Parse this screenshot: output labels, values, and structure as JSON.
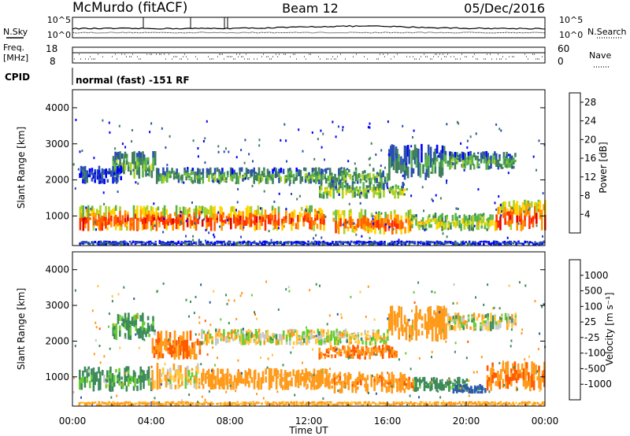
{
  "header": {
    "station": "McMurdo (fitACF)",
    "beam": "Beam 12",
    "date": "05/Dec/2016"
  },
  "noise_panel": {
    "left_label": "N.Sky",
    "right_label": "N.Search",
    "tick_top": "10^5",
    "tick_bottom": "10^0"
  },
  "freq_panel": {
    "left_label_1": "Freq.",
    "left_label_2": "[MHz]",
    "tick_top": "18",
    "tick_bottom": "8",
    "right_tick_top": "60",
    "right_tick_bottom": "0",
    "right_label": "Nave"
  },
  "cpid": {
    "label": "CPID",
    "value": "normal (fast) -151 RF"
  },
  "colors": {
    "power_scale": [
      "#0000ff",
      "#2a4fb0",
      "#3f7f5c",
      "#59b34c",
      "#a8d22a",
      "#ffd400",
      "#ff9900",
      "#ff6200",
      "#ff2c00",
      "#e00000"
    ],
    "velocity_scale": [
      "#e00000",
      "#ff5a00",
      "#ff9a1a",
      "#ffc840",
      "#c8c8c8",
      "#c8c8c8",
      "#66cc33",
      "#3d8a5a",
      "#2a5aa8",
      "#1a2ab8"
    ]
  },
  "chart_data": [
    {
      "type": "heatmap",
      "title": "",
      "xlabel": "",
      "ylabel": "Slant Range [km]",
      "x_ticks": [],
      "y_ticks": [
        "1000",
        "2000",
        "3000",
        "4000"
      ],
      "ylim": [
        180,
        4500
      ],
      "xlim_hours": [
        0,
        24
      ],
      "colorbar": {
        "label": "Power [dB]",
        "ticks": [
          "4",
          "8",
          "12",
          "16",
          "20",
          "24",
          "28"
        ],
        "range": [
          0,
          30
        ]
      },
      "echo_bands": [
        {
          "t_start": 0.3,
          "t_end": 12.8,
          "range_low": 600,
          "range_high": 1300,
          "level": 0.75
        },
        {
          "t_start": 13.2,
          "t_end": 17.2,
          "range_low": 500,
          "range_high": 1200,
          "level": 0.7
        },
        {
          "t_start": 17.2,
          "t_end": 21.3,
          "range_low": 600,
          "range_high": 1100,
          "level": 0.45
        },
        {
          "t_start": 21.3,
          "t_end": 24.0,
          "range_low": 600,
          "range_high": 1450,
          "level": 0.75
        },
        {
          "t_start": 0.3,
          "t_end": 24.0,
          "range_low": 200,
          "range_high": 320,
          "level": 0.12
        },
        {
          "t_start": 2.0,
          "t_end": 4.2,
          "range_low": 2050,
          "range_high": 2800,
          "level": 0.35
        },
        {
          "t_start": 4.2,
          "t_end": 16.0,
          "range_low": 1900,
          "range_high": 2350,
          "level": 0.3
        },
        {
          "t_start": 12.5,
          "t_end": 17.0,
          "range_low": 1500,
          "range_high": 1950,
          "level": 0.4
        },
        {
          "t_start": 16.0,
          "t_end": 19.0,
          "range_low": 2000,
          "range_high": 3000,
          "level": 0.25
        },
        {
          "t_start": 19.0,
          "t_end": 22.5,
          "range_low": 2300,
          "range_high": 2800,
          "level": 0.3
        },
        {
          "t_start": 0.3,
          "t_end": 2.5,
          "range_low": 1900,
          "range_high": 2400,
          "level": 0.1
        }
      ]
    },
    {
      "type": "heatmap",
      "title": "",
      "xlabel": "Time UT",
      "ylabel": "Slant Range [km]",
      "x_ticks": [
        "00:00",
        "04:00",
        "08:00",
        "12:00",
        "16:00",
        "20:00",
        "00:00"
      ],
      "y_ticks": [
        "1000",
        "2000",
        "3000",
        "4000"
      ],
      "ylim": [
        180,
        4500
      ],
      "xlim_hours": [
        0,
        24
      ],
      "colorbar": {
        "label": "Velocity [m s⁻¹]",
        "ticks": [
          "1000",
          "500",
          "100",
          "25",
          "-25",
          "-100",
          "-500",
          "-1000"
        ],
        "range": [
          -1000,
          1000
        ]
      },
      "echo_bands": [
        {
          "t_start": 0.3,
          "t_end": 4.0,
          "range_low": 600,
          "range_high": 1300,
          "velocity": 150
        },
        {
          "t_start": 4.0,
          "t_end": 6.5,
          "range_low": 650,
          "range_high": 1400,
          "velocity": -50
        },
        {
          "t_start": 6.5,
          "t_end": 13.0,
          "range_low": 650,
          "range_high": 1250,
          "velocity": -300
        },
        {
          "t_start": 13.0,
          "t_end": 17.3,
          "range_low": 550,
          "range_high": 1150,
          "velocity": -400
        },
        {
          "t_start": 17.3,
          "t_end": 20.0,
          "range_low": 600,
          "range_high": 1000,
          "velocity": 200
        },
        {
          "t_start": 19.3,
          "t_end": 21.0,
          "range_low": 550,
          "range_high": 800,
          "velocity": 700
        },
        {
          "t_start": 21.0,
          "t_end": 24.0,
          "range_low": 600,
          "range_high": 1450,
          "velocity": -500
        },
        {
          "t_start": 2.0,
          "t_end": 4.2,
          "range_low": 2050,
          "range_high": 2800,
          "velocity": 150
        },
        {
          "t_start": 4.0,
          "t_end": 6.5,
          "range_low": 1500,
          "range_high": 2300,
          "velocity": -500
        },
        {
          "t_start": 6.5,
          "t_end": 16.0,
          "range_low": 1900,
          "range_high": 2350,
          "velocity": -20
        },
        {
          "t_start": 12.5,
          "t_end": 16.5,
          "range_low": 1500,
          "range_high": 1900,
          "velocity": -500
        },
        {
          "t_start": 16.0,
          "t_end": 19.0,
          "range_low": 2000,
          "range_high": 3000,
          "velocity": -300
        },
        {
          "t_start": 19.0,
          "t_end": 22.5,
          "range_low": 2300,
          "range_high": 2800,
          "velocity": 0
        },
        {
          "t_start": 0.3,
          "t_end": 24.0,
          "range_low": 200,
          "range_high": 320,
          "velocity": -150
        }
      ]
    }
  ]
}
